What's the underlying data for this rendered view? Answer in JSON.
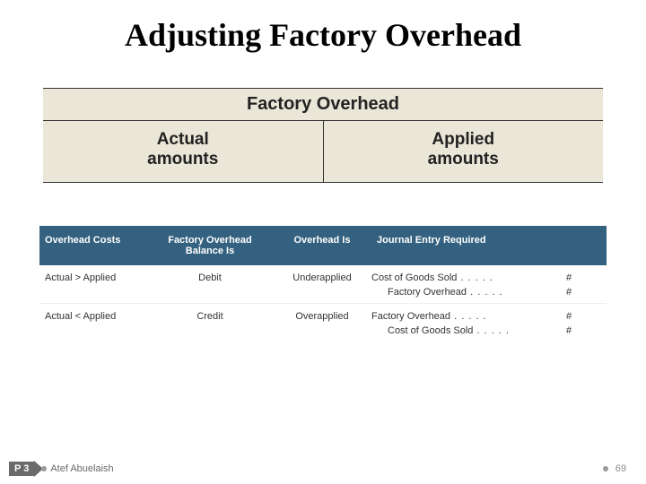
{
  "title": "Adjusting Factory Overhead",
  "fo_box": {
    "header": "Factory Overhead",
    "left_label_line1": "Actual",
    "left_label_line2": "amounts",
    "right_label_line1": "Applied",
    "right_label_line2": "amounts",
    "header_bg": "#eae7d8",
    "column_bg": "#eae7d8",
    "border_color": "#333333"
  },
  "cond_table": {
    "header_bg": "#34617f",
    "header_text_color": "#ffffff",
    "headers": {
      "overhead_costs": "Overhead Costs",
      "balance_is_line1": "Factory Overhead",
      "balance_is_line2": "Balance Is",
      "overhead_is": "Overhead Is",
      "journal_entry": "Journal Entry Required"
    },
    "rows": [
      {
        "condition": "Actual > Applied",
        "balance": "Debit",
        "status": "Underapplied",
        "journal": [
          {
            "account": "Cost of Goods Sold",
            "indent": false,
            "amount": "#"
          },
          {
            "account": "Factory Overhead",
            "indent": true,
            "amount": "#"
          }
        ]
      },
      {
        "condition": "Actual < Applied",
        "balance": "Credit",
        "status": "Overapplied",
        "journal": [
          {
            "account": "Factory Overhead",
            "indent": false,
            "amount": "#"
          },
          {
            "account": "Cost of Goods Sold",
            "indent": true,
            "amount": "#"
          }
        ]
      }
    ]
  },
  "footer": {
    "tag": "P 3",
    "author": "Atef Abuelaish",
    "page": "69",
    "tag_bg": "#6b6b6b",
    "text_color": "#6b6b6b"
  }
}
